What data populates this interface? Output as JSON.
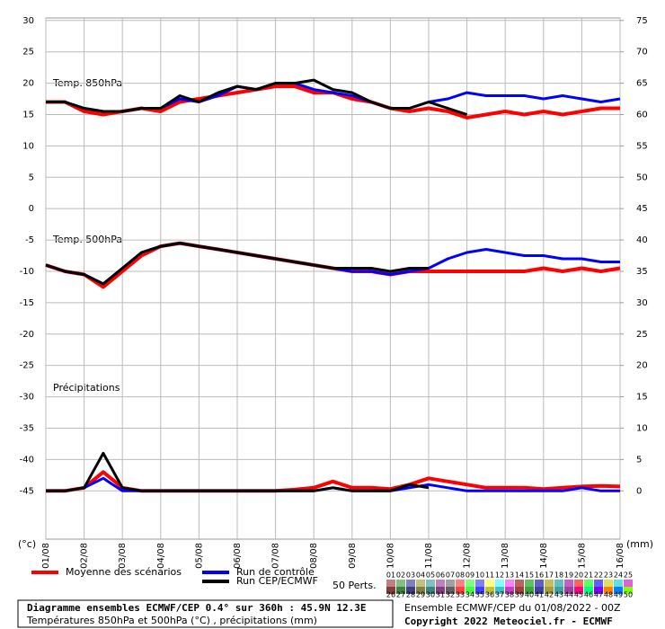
{
  "chart_data": {
    "type": "line",
    "categories": [
      "01/08",
      "02/08",
      "03/08",
      "04/08",
      "05/08",
      "06/08",
      "07/08",
      "08/08",
      "09/08",
      "10/08",
      "11/08",
      "12/08",
      "13/08",
      "14/08",
      "15/08",
      "16/08"
    ],
    "ylim": [
      -52.7,
      30.4
    ],
    "yticks": [
      30,
      25,
      20,
      15,
      10,
      5,
      0,
      -5,
      -10,
      -15,
      -20,
      -25,
      -30,
      -35,
      -40,
      -45
    ],
    "y2lim": [
      -7.7,
      75.4
    ],
    "y2ticks": [
      75,
      70,
      65,
      60,
      55,
      50,
      45,
      40,
      35,
      30,
      25,
      20,
      15,
      10,
      5,
      0
    ],
    "ylabel": "(°c)",
    "y2label": "(mm)",
    "grid": true,
    "panel_labels": [
      "Temp. 850hPa",
      "Temp. 500hPa",
      "Précipitations"
    ],
    "series": [
      {
        "name": "Moyenne des scénarios",
        "color": "#ff0000",
        "t850": [
          17,
          17,
          15.5,
          15,
          15.5,
          16,
          15.5,
          17,
          17.5,
          18,
          18.5,
          19,
          19.5,
          19.5,
          18.5,
          18.5,
          17.5,
          17,
          16,
          15.5,
          16,
          15.5,
          14.5,
          15,
          15.5,
          15,
          15.5,
          15,
          15.5,
          16,
          16
        ],
        "t500": [
          -9,
          -10,
          -10.5,
          -12.5,
          -10,
          -7.5,
          -6,
          -5.5,
          -6,
          -6.5,
          -7,
          -7.5,
          -8,
          -8.5,
          -9,
          -9.5,
          -10,
          -10,
          -10.5,
          -10,
          -10,
          -10,
          -10,
          -10,
          -10,
          -10,
          -9.5,
          -10,
          -9.5,
          -10,
          -9.5
        ],
        "precip": [
          0,
          0,
          0.5,
          3,
          0.5,
          0,
          0,
          0,
          0,
          0,
          0,
          0,
          0,
          0.2,
          0.5,
          1.5,
          0.5,
          0.5,
          0.3,
          1,
          2,
          1.5,
          1,
          0.5,
          0.5,
          0.5,
          0.3,
          0.5,
          0.7,
          0.8,
          0.7
        ]
      },
      {
        "name": "Run de contrôle",
        "color": "#0000ff",
        "t850": [
          17,
          17,
          16,
          15.5,
          15.5,
          16,
          16,
          17.5,
          17,
          18,
          19.5,
          19,
          20,
          20,
          19,
          18.5,
          18,
          17,
          16,
          16,
          17,
          17.5,
          18.5,
          18,
          18,
          18,
          17.5,
          18,
          17.5,
          17,
          17.5
        ],
        "t500": [
          -9,
          -10,
          -10.5,
          -12,
          -9.5,
          -7,
          -6,
          -5.5,
          -6,
          -6.5,
          -7,
          -7.5,
          -8,
          -8.5,
          -9,
          -9.5,
          -10,
          -10,
          -10.5,
          -10,
          -9.5,
          -8,
          -7,
          -6.5,
          -7,
          -7.5,
          -7.5,
          -8,
          -8,
          -8.5,
          -8.5
        ],
        "precip": [
          0,
          0,
          0.5,
          2,
          0,
          0,
          0,
          0,
          0,
          0,
          0,
          0,
          0,
          0,
          0,
          0.5,
          0,
          0,
          0,
          0.5,
          1,
          0.5,
          0,
          0,
          0,
          0,
          0,
          0,
          0.5,
          0,
          0
        ]
      },
      {
        "name": "Run CEP/ECMWF",
        "color": "#000000",
        "t850": [
          17,
          17,
          16,
          15.5,
          15.5,
          16,
          16,
          18,
          17,
          18.5,
          19.5,
          19,
          20,
          20,
          20.5,
          19,
          18.5,
          17,
          16,
          16,
          17,
          16,
          15,
          null,
          null,
          null,
          null,
          null,
          null,
          null,
          null
        ],
        "t500": [
          -9,
          -10,
          -10.5,
          -12,
          -9.5,
          -7,
          -6,
          -5.5,
          -6,
          -6.5,
          -7,
          -7.5,
          -8,
          -8.5,
          -9,
          -9.5,
          -9.5,
          -9.5,
          -10,
          -9.5,
          -9.5,
          null,
          null,
          null,
          null,
          null,
          null,
          null,
          null,
          null,
          null
        ],
        "precip": [
          0,
          0,
          0.5,
          6,
          0.5,
          0,
          0,
          0,
          0,
          0,
          0,
          0,
          0,
          0,
          0,
          0.5,
          0,
          0,
          0,
          1,
          0.5,
          null,
          null,
          null,
          null,
          null,
          null,
          null,
          null,
          null,
          null
        ]
      }
    ],
    "perturbations": {
      "label": "50 Perts.",
      "ids": [
        "01",
        "02",
        "03",
        "04",
        "05",
        "06",
        "07",
        "08",
        "09",
        "10",
        "11",
        "12",
        "13",
        "14",
        "15",
        "16",
        "17",
        "18",
        "19",
        "20",
        "21",
        "22",
        "23",
        "24",
        "25",
        "26",
        "27",
        "28",
        "29",
        "30",
        "31",
        "32",
        "33",
        "34",
        "35",
        "36",
        "37",
        "38",
        "39",
        "40",
        "41",
        "42",
        "43",
        "44",
        "45",
        "46",
        "47",
        "48",
        "49",
        "50"
      ],
      "colors": [
        "#c08080",
        "#80c080",
        "#8080c0",
        "#c0c080",
        "#80c0c0",
        "#c080c0",
        "#a0a0a0",
        "#ff8080",
        "#80ff80",
        "#8080ff",
        "#ffff80",
        "#80ffff",
        "#ff80ff",
        "#c06060",
        "#60c060",
        "#6060c0",
        "#c0c060",
        "#60c0c0",
        "#c060c0",
        "#ff6060",
        "#60ff60",
        "#6060ff",
        "#e0e060",
        "#60e0e0",
        "#e060e0",
        "#804040",
        "#408040",
        "#404080",
        "#808040",
        "#408080",
        "#804080",
        "#606060",
        "#ff4040",
        "#40ff40",
        "#4040ff",
        "#c0c040",
        "#40c0c0",
        "#c040c0",
        "#a04040",
        "#40a040",
        "#4040a0",
        "#a0a040",
        "#40a0a0",
        "#a040a0",
        "#ff0080",
        "#00ff80",
        "#8000ff",
        "#ff8000",
        "#0080ff",
        "#80ff00"
      ]
    },
    "footer": {
      "title": "Diagramme ensembles ECMWF/CEP 0.4° sur 360h : 45.9N 12.3E",
      "subtitle": "Températures 850hPa et 500hPa (°C) , précipitations (mm)",
      "run": "Ensemble ECMWF/CEP du 01/08/2022 - 00Z",
      "copyright": "Copyright 2022 Meteociel.fr - ECMWF"
    }
  }
}
